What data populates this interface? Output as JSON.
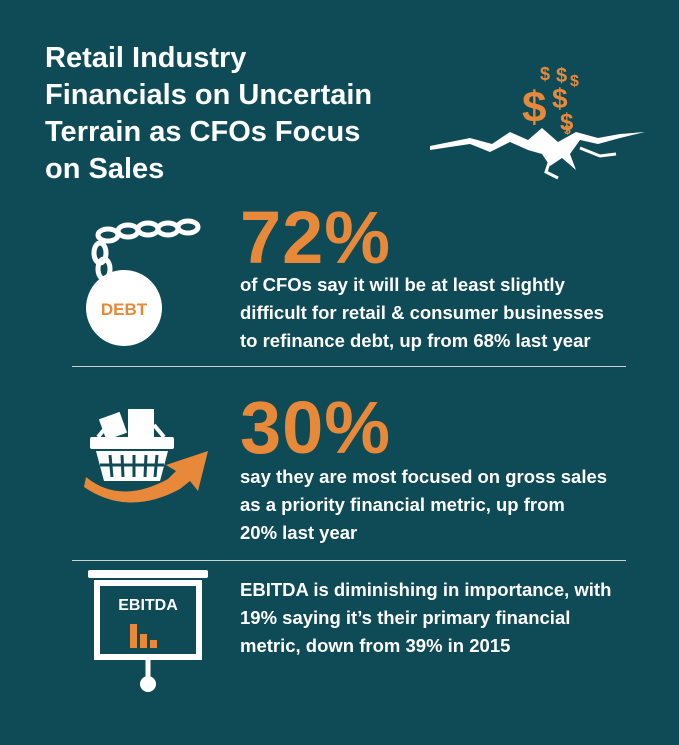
{
  "title": {
    "lines": [
      "Retail Industry",
      "Financials on Uncertain",
      "Terrain as CFOs Focus",
      "on Sales"
    ]
  },
  "icons": {
    "hero": "falling-dollar-cracked-ground-icon",
    "debt": "debt-ball-and-chain-icon",
    "debt_label": "DEBT",
    "basket": "shopping-basket-growth-arrow-icon",
    "ebitda": "ebitda-presentation-board-icon",
    "ebitda_label": "EBITDA"
  },
  "stats": [
    {
      "value": "72%",
      "lines": [
        "of CFOs say it will be at least slightly",
        "difficult for retail & consumer businesses",
        "to refinance debt, up from 68% last year"
      ]
    },
    {
      "value": "30%",
      "lines": [
        "say they are most focused on gross sales",
        "as a priority financial metric, up from",
        "20% last year"
      ]
    },
    {
      "lines": [
        "EBITDA is diminishing in importance, with",
        "19% saying it’s their primary financial",
        "metric, down from 39% in 2015"
      ]
    }
  ],
  "colors": {
    "background": "#0f4b57",
    "accent": "#e8893a",
    "text": "#ffffff"
  }
}
